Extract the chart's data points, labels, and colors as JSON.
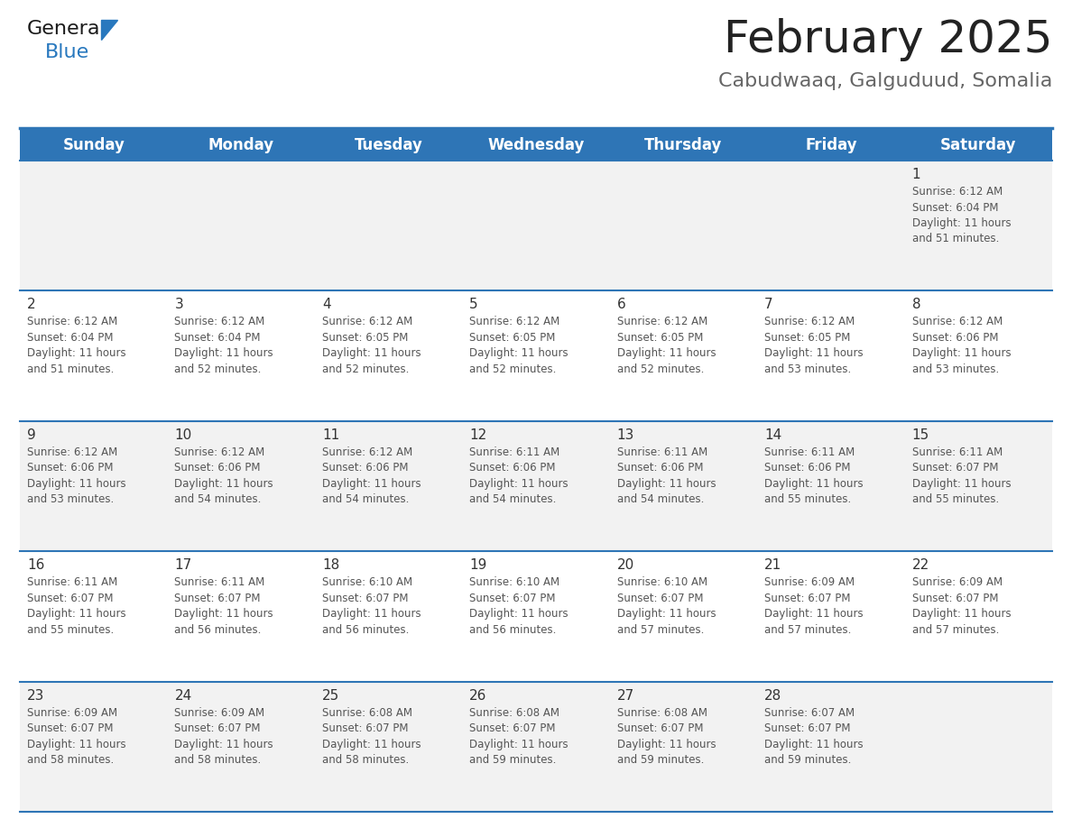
{
  "title": "February 2025",
  "subtitle": "Cabudwaaq, Galguduud, Somalia",
  "header_bg_color": "#2E75B6",
  "header_text_color": "#FFFFFF",
  "weekdays": [
    "Sunday",
    "Monday",
    "Tuesday",
    "Wednesday",
    "Thursday",
    "Friday",
    "Saturday"
  ],
  "row_bg_odd": "#F2F2F2",
  "row_bg_even": "#FFFFFF",
  "separator_color": "#2E75B6",
  "day_num_color": "#333333",
  "cell_text_color": "#555555",
  "title_color": "#222222",
  "subtitle_color": "#666666",
  "logo_dark_color": "#1a1a1a",
  "logo_blue_color": "#2878BE",
  "logo_triangle_color": "#2878BE",
  "days": [
    {
      "day": 1,
      "row": 0,
      "col": 6,
      "sunrise": "6:12 AM",
      "sunset": "6:04 PM",
      "daylight_hours": 11,
      "daylight_minutes": 51
    },
    {
      "day": 2,
      "row": 1,
      "col": 0,
      "sunrise": "6:12 AM",
      "sunset": "6:04 PM",
      "daylight_hours": 11,
      "daylight_minutes": 51
    },
    {
      "day": 3,
      "row": 1,
      "col": 1,
      "sunrise": "6:12 AM",
      "sunset": "6:04 PM",
      "daylight_hours": 11,
      "daylight_minutes": 52
    },
    {
      "day": 4,
      "row": 1,
      "col": 2,
      "sunrise": "6:12 AM",
      "sunset": "6:05 PM",
      "daylight_hours": 11,
      "daylight_minutes": 52
    },
    {
      "day": 5,
      "row": 1,
      "col": 3,
      "sunrise": "6:12 AM",
      "sunset": "6:05 PM",
      "daylight_hours": 11,
      "daylight_minutes": 52
    },
    {
      "day": 6,
      "row": 1,
      "col": 4,
      "sunrise": "6:12 AM",
      "sunset": "6:05 PM",
      "daylight_hours": 11,
      "daylight_minutes": 52
    },
    {
      "day": 7,
      "row": 1,
      "col": 5,
      "sunrise": "6:12 AM",
      "sunset": "6:05 PM",
      "daylight_hours": 11,
      "daylight_minutes": 53
    },
    {
      "day": 8,
      "row": 1,
      "col": 6,
      "sunrise": "6:12 AM",
      "sunset": "6:06 PM",
      "daylight_hours": 11,
      "daylight_minutes": 53
    },
    {
      "day": 9,
      "row": 2,
      "col": 0,
      "sunrise": "6:12 AM",
      "sunset": "6:06 PM",
      "daylight_hours": 11,
      "daylight_minutes": 53
    },
    {
      "day": 10,
      "row": 2,
      "col": 1,
      "sunrise": "6:12 AM",
      "sunset": "6:06 PM",
      "daylight_hours": 11,
      "daylight_minutes": 54
    },
    {
      "day": 11,
      "row": 2,
      "col": 2,
      "sunrise": "6:12 AM",
      "sunset": "6:06 PM",
      "daylight_hours": 11,
      "daylight_minutes": 54
    },
    {
      "day": 12,
      "row": 2,
      "col": 3,
      "sunrise": "6:11 AM",
      "sunset": "6:06 PM",
      "daylight_hours": 11,
      "daylight_minutes": 54
    },
    {
      "day": 13,
      "row": 2,
      "col": 4,
      "sunrise": "6:11 AM",
      "sunset": "6:06 PM",
      "daylight_hours": 11,
      "daylight_minutes": 54
    },
    {
      "day": 14,
      "row": 2,
      "col": 5,
      "sunrise": "6:11 AM",
      "sunset": "6:06 PM",
      "daylight_hours": 11,
      "daylight_minutes": 55
    },
    {
      "day": 15,
      "row": 2,
      "col": 6,
      "sunrise": "6:11 AM",
      "sunset": "6:07 PM",
      "daylight_hours": 11,
      "daylight_minutes": 55
    },
    {
      "day": 16,
      "row": 3,
      "col": 0,
      "sunrise": "6:11 AM",
      "sunset": "6:07 PM",
      "daylight_hours": 11,
      "daylight_minutes": 55
    },
    {
      "day": 17,
      "row": 3,
      "col": 1,
      "sunrise": "6:11 AM",
      "sunset": "6:07 PM",
      "daylight_hours": 11,
      "daylight_minutes": 56
    },
    {
      "day": 18,
      "row": 3,
      "col": 2,
      "sunrise": "6:10 AM",
      "sunset": "6:07 PM",
      "daylight_hours": 11,
      "daylight_minutes": 56
    },
    {
      "day": 19,
      "row": 3,
      "col": 3,
      "sunrise": "6:10 AM",
      "sunset": "6:07 PM",
      "daylight_hours": 11,
      "daylight_minutes": 56
    },
    {
      "day": 20,
      "row": 3,
      "col": 4,
      "sunrise": "6:10 AM",
      "sunset": "6:07 PM",
      "daylight_hours": 11,
      "daylight_minutes": 57
    },
    {
      "day": 21,
      "row": 3,
      "col": 5,
      "sunrise": "6:09 AM",
      "sunset": "6:07 PM",
      "daylight_hours": 11,
      "daylight_minutes": 57
    },
    {
      "day": 22,
      "row": 3,
      "col": 6,
      "sunrise": "6:09 AM",
      "sunset": "6:07 PM",
      "daylight_hours": 11,
      "daylight_minutes": 57
    },
    {
      "day": 23,
      "row": 4,
      "col": 0,
      "sunrise": "6:09 AM",
      "sunset": "6:07 PM",
      "daylight_hours": 11,
      "daylight_minutes": 58
    },
    {
      "day": 24,
      "row": 4,
      "col": 1,
      "sunrise": "6:09 AM",
      "sunset": "6:07 PM",
      "daylight_hours": 11,
      "daylight_minutes": 58
    },
    {
      "day": 25,
      "row": 4,
      "col": 2,
      "sunrise": "6:08 AM",
      "sunset": "6:07 PM",
      "daylight_hours": 11,
      "daylight_minutes": 58
    },
    {
      "day": 26,
      "row": 4,
      "col": 3,
      "sunrise": "6:08 AM",
      "sunset": "6:07 PM",
      "daylight_hours": 11,
      "daylight_minutes": 59
    },
    {
      "day": 27,
      "row": 4,
      "col": 4,
      "sunrise": "6:08 AM",
      "sunset": "6:07 PM",
      "daylight_hours": 11,
      "daylight_minutes": 59
    },
    {
      "day": 28,
      "row": 4,
      "col": 5,
      "sunrise": "6:07 AM",
      "sunset": "6:07 PM",
      "daylight_hours": 11,
      "daylight_minutes": 59
    }
  ],
  "num_rows": 5,
  "num_cols": 7
}
